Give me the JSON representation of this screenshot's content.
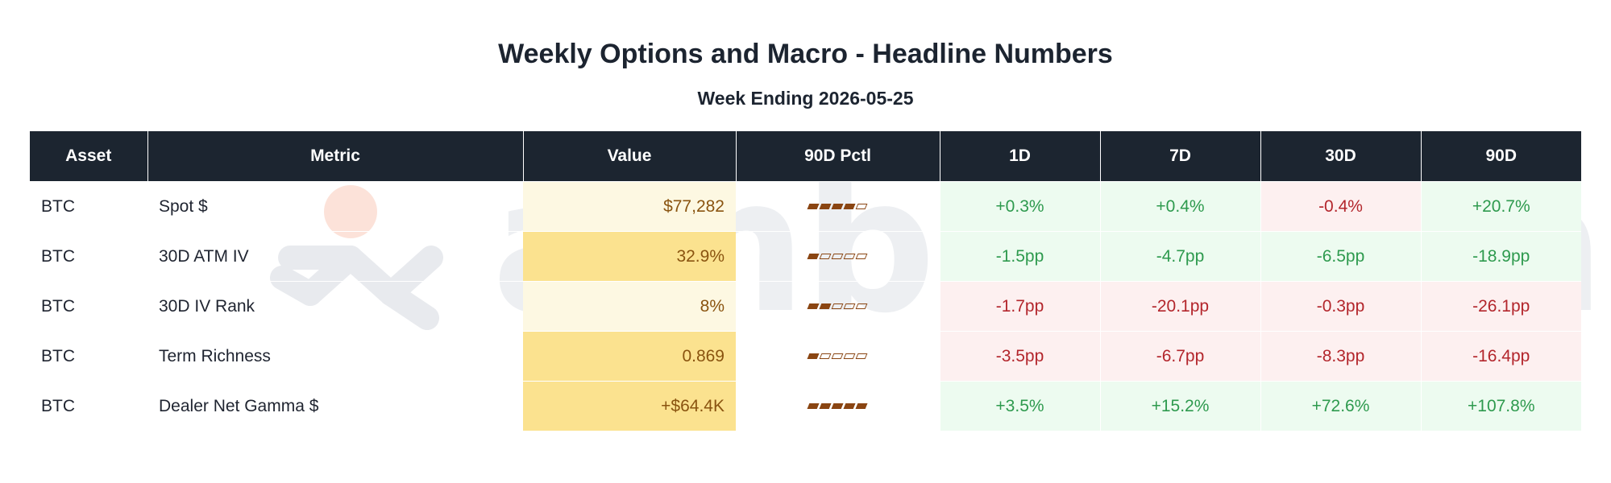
{
  "title": "Weekly Options and Macro - Headline Numbers",
  "subtitle": "Week Ending 2026-05-25",
  "watermark": "amberdata",
  "colors": {
    "header_bg": "#1c2530",
    "value_text": "#8a5410",
    "positive_text": "#2e9a4e",
    "positive_bg": "#edfbf0",
    "negative_text": "#b3262c",
    "negative_bg": "#fdf0f0",
    "pctl_bar": "#8a4512"
  },
  "chart_data": {
    "type": "table",
    "columns": [
      "Asset",
      "Metric",
      "Value",
      "90D Pctl",
      "1D",
      "7D",
      "30D",
      "90D"
    ],
    "pctl_scale_max": 5,
    "rows": [
      {
        "asset": "BTC",
        "metric": "Spot $",
        "value": "$77,282",
        "value_bg": "#fdf8e2",
        "pctl_filled": 4,
        "changes": [
          {
            "text": "+0.3%",
            "dir": "pos"
          },
          {
            "text": "+0.4%",
            "dir": "pos"
          },
          {
            "text": "-0.4%",
            "dir": "neg"
          },
          {
            "text": "+20.7%",
            "dir": "pos"
          }
        ]
      },
      {
        "asset": "BTC",
        "metric": "30D ATM IV",
        "value": "32.9%",
        "value_bg": "#fbe28f",
        "pctl_filled": 1,
        "changes": [
          {
            "text": "-1.5pp",
            "dir": "pos"
          },
          {
            "text": "-4.7pp",
            "dir": "pos"
          },
          {
            "text": "-6.5pp",
            "dir": "pos"
          },
          {
            "text": "-18.9pp",
            "dir": "pos"
          }
        ]
      },
      {
        "asset": "BTC",
        "metric": "30D IV Rank",
        "value": "8%",
        "value_bg": "#fdf8e2",
        "pctl_filled": 2,
        "changes": [
          {
            "text": "-1.7pp",
            "dir": "neg"
          },
          {
            "text": "-20.1pp",
            "dir": "neg"
          },
          {
            "text": "-0.3pp",
            "dir": "neg"
          },
          {
            "text": "-26.1pp",
            "dir": "neg"
          }
        ]
      },
      {
        "asset": "BTC",
        "metric": "Term Richness",
        "value": "0.869",
        "value_bg": "#fbe28f",
        "pctl_filled": 1,
        "changes": [
          {
            "text": "-3.5pp",
            "dir": "neg"
          },
          {
            "text": "-6.7pp",
            "dir": "neg"
          },
          {
            "text": "-8.3pp",
            "dir": "neg"
          },
          {
            "text": "-16.4pp",
            "dir": "neg"
          }
        ]
      },
      {
        "asset": "BTC",
        "metric": "Dealer Net Gamma $",
        "value": "+$64.4K",
        "value_bg": "#fbe28f",
        "pctl_filled": 5,
        "changes": [
          {
            "text": "+3.5%",
            "dir": "pos"
          },
          {
            "text": "+15.2%",
            "dir": "pos"
          },
          {
            "text": "+72.6%",
            "dir": "pos"
          },
          {
            "text": "+107.8%",
            "dir": "pos"
          }
        ]
      }
    ]
  }
}
